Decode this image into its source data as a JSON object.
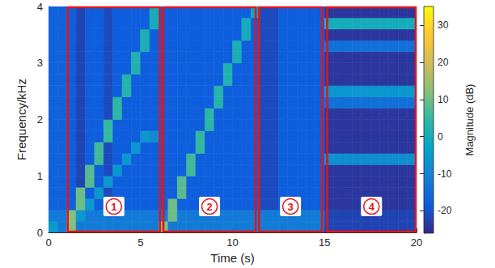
{
  "chart_data": {
    "type": "heatmap",
    "xlabel": "Time (s)",
    "ylabel": "Frequency/kHz",
    "xlim": [
      0,
      20
    ],
    "xticks": [
      0,
      5,
      10,
      15,
      20
    ],
    "ylim": [
      0,
      4
    ],
    "yticks": [
      0,
      1,
      2,
      3,
      4
    ],
    "x_edges": [
      0,
      0.5,
      1,
      1.5,
      2,
      2.5,
      3,
      3.5,
      4,
      4.5,
      5,
      5.5,
      6,
      6.5,
      7,
      7.5,
      8,
      8.5,
      9,
      9.5,
      10,
      10.5,
      11,
      11.5,
      12,
      12.5,
      13,
      13.5,
      14,
      14.5,
      15,
      15.5,
      16,
      16.5,
      17,
      17.5,
      18,
      18.5,
      19,
      19.5,
      20
    ],
    "y_edges": [
      0,
      0.2,
      0.4,
      0.6,
      0.8,
      1,
      1.2,
      1.4,
      1.6,
      1.8,
      2,
      2.2,
      2.4,
      2.6,
      2.8,
      3,
      3.2,
      3.4,
      3.6,
      3.8,
      4
    ],
    "z": [
      [
        -5,
        -12,
        12,
        -12,
        -12,
        -12,
        -12,
        -12,
        -12,
        -12,
        -12,
        -12,
        12,
        -12,
        -12,
        -12,
        -12,
        -12,
        -12,
        -12,
        -12,
        -12,
        -12,
        -12,
        -12,
        -12,
        -12,
        -12,
        -12,
        -12,
        -22,
        -22,
        -22,
        -22,
        -22,
        -22,
        -22,
        -22,
        -22,
        -22
      ],
      [
        -12,
        -12,
        12,
        -6,
        -12,
        -12,
        -12,
        -12,
        -12,
        -12,
        -12,
        -12,
        -12,
        10,
        -12,
        -12,
        -12,
        -12,
        -12,
        -12,
        -12,
        -12,
        -12,
        -12,
        -12,
        -12,
        -12,
        -12,
        -12,
        -12,
        -22,
        -22,
        -22,
        -22,
        -22,
        -22,
        -22,
        -22,
        -22,
        -22
      ],
      [
        -17,
        -17,
        -18,
        10,
        -6,
        -18,
        -21,
        -18,
        -18,
        -18,
        -18,
        -18,
        -18,
        10,
        -18,
        -18,
        -18,
        -18,
        -18,
        -18,
        -18,
        -18,
        -18,
        -21,
        -21,
        -18,
        -18,
        -18,
        -18,
        -18,
        -24,
        -24,
        -24,
        -24,
        -24,
        -24,
        -24,
        -24,
        -24,
        -24
      ],
      [
        -17,
        -17,
        -18,
        10,
        -18,
        -6,
        -21,
        -18,
        -18,
        -18,
        -18,
        -18,
        -18,
        -18,
        8,
        -18,
        -18,
        -18,
        -18,
        -18,
        -18,
        -18,
        -18,
        -21,
        -21,
        -18,
        -18,
        -18,
        -18,
        -18,
        -24,
        -24,
        -24,
        -24,
        -24,
        -24,
        -24,
        -24,
        -24,
        -24
      ],
      [
        -17,
        -17,
        -18,
        -22,
        8,
        -18,
        -6,
        -18,
        -18,
        -18,
        -18,
        -18,
        -18,
        -18,
        8,
        -18,
        -18,
        -18,
        -18,
        -18,
        -18,
        -18,
        -18,
        -21,
        -21,
        -18,
        -18,
        -18,
        -18,
        -18,
        -24,
        -24,
        -24,
        -24,
        -24,
        -24,
        -24,
        -24,
        -24,
        -24
      ],
      [
        -17,
        -17,
        -18,
        -22,
        8,
        -18,
        -21,
        -6,
        -18,
        -18,
        -18,
        -18,
        -18,
        -18,
        -18,
        6,
        -18,
        -18,
        -18,
        -18,
        -18,
        -18,
        -18,
        -21,
        -21,
        -18,
        -18,
        -18,
        -18,
        -18,
        -24,
        -24,
        -24,
        -24,
        -24,
        -24,
        -24,
        -24,
        -24,
        -24
      ],
      [
        -17,
        -17,
        -18,
        -22,
        -18,
        6,
        -21,
        -18,
        -6,
        -18,
        -18,
        -18,
        -18,
        -18,
        -18,
        6,
        -18,
        -18,
        -18,
        -18,
        -18,
        -18,
        -18,
        -21,
        -21,
        -18,
        -18,
        -18,
        -18,
        -18,
        -8,
        -8,
        -8,
        -8,
        -8,
        -8,
        -8,
        -8,
        -8,
        -8
      ],
      [
        -17,
        -17,
        -18,
        -22,
        -18,
        6,
        -21,
        -18,
        -18,
        -6,
        -18,
        -18,
        -18,
        -18,
        -18,
        -18,
        5,
        -18,
        -18,
        -18,
        -18,
        -18,
        -18,
        -21,
        -21,
        -18,
        -18,
        -18,
        -18,
        -18,
        -24,
        -24,
        -24,
        -24,
        -24,
        -24,
        -24,
        -24,
        -24,
        -24
      ],
      [
        -17,
        -17,
        -18,
        -22,
        -18,
        -18,
        5,
        -18,
        -18,
        -18,
        -6,
        -9,
        -18,
        -18,
        -18,
        -18,
        5,
        -18,
        -18,
        -18,
        -18,
        -18,
        -18,
        -21,
        -21,
        -18,
        -18,
        -18,
        -18,
        -18,
        -24,
        -24,
        -24,
        -24,
        -24,
        -24,
        -24,
        -24,
        -24,
        -24
      ],
      [
        -17,
        -17,
        -18,
        -22,
        -18,
        -18,
        5,
        -18,
        -18,
        -18,
        -18,
        -18,
        -18,
        -18,
        -18,
        -18,
        -18,
        4,
        -18,
        -18,
        -18,
        -18,
        -18,
        -21,
        -21,
        -18,
        -18,
        -18,
        -18,
        -18,
        -24,
        -24,
        -24,
        -24,
        -24,
        -24,
        -24,
        -24,
        -24,
        -24
      ],
      [
        -17,
        -17,
        -18,
        -22,
        -18,
        -18,
        -21,
        4,
        -18,
        -18,
        -18,
        -18,
        -18,
        -18,
        -18,
        -18,
        -18,
        4,
        -18,
        -18,
        -18,
        -18,
        -18,
        -21,
        -21,
        -18,
        -18,
        -18,
        -18,
        -18,
        -24,
        -24,
        -24,
        -24,
        -24,
        -24,
        -24,
        -24,
        -24,
        -24
      ],
      [
        -17,
        -17,
        -18,
        -22,
        -18,
        -18,
        -21,
        4,
        -18,
        -18,
        -18,
        -18,
        -18,
        -18,
        -18,
        -18,
        -18,
        -18,
        3,
        -18,
        -18,
        -18,
        -18,
        -21,
        -21,
        -18,
        -18,
        -18,
        -18,
        -18,
        -14,
        -14,
        -14,
        -14,
        -14,
        -14,
        -14,
        -14,
        -14,
        -14
      ],
      [
        -17,
        -17,
        -18,
        -22,
        -18,
        -18,
        -21,
        -18,
        3,
        -18,
        -18,
        -18,
        -18,
        -18,
        -18,
        -18,
        -18,
        -18,
        3,
        -18,
        -18,
        -18,
        -18,
        -21,
        -21,
        -18,
        -18,
        -18,
        -18,
        -18,
        -6,
        -6,
        -6,
        -6,
        -6,
        -6,
        -6,
        -6,
        -6,
        -6
      ],
      [
        -17,
        -17,
        -18,
        -22,
        -18,
        -18,
        -21,
        -18,
        3,
        -18,
        -18,
        -18,
        -18,
        -18,
        -18,
        -18,
        -18,
        -18,
        -18,
        2,
        -18,
        -18,
        -18,
        -21,
        -21,
        -18,
        -18,
        -18,
        -18,
        -18,
        -24,
        -24,
        -24,
        -24,
        -24,
        -24,
        -24,
        -24,
        -24,
        -24
      ],
      [
        -17,
        -17,
        -18,
        -22,
        -18,
        -18,
        -21,
        -18,
        -18,
        2,
        -18,
        -18,
        -18,
        -18,
        -18,
        -18,
        -18,
        -18,
        -18,
        2,
        -18,
        -18,
        -18,
        -21,
        -21,
        -18,
        -18,
        -18,
        -18,
        -18,
        -24,
        -24,
        -24,
        -24,
        -24,
        -24,
        -24,
        -24,
        -24,
        -24
      ],
      [
        -17,
        -17,
        -18,
        -22,
        -18,
        -18,
        -21,
        -18,
        -18,
        2,
        -18,
        -18,
        -18,
        -18,
        -18,
        -18,
        -18,
        -18,
        -18,
        -18,
        1,
        -18,
        -18,
        -21,
        -21,
        -18,
        -18,
        -18,
        -18,
        -18,
        -24,
        -24,
        -24,
        -24,
        -24,
        -24,
        -24,
        -24,
        -24,
        -24
      ],
      [
        -17,
        -17,
        -18,
        -22,
        -18,
        -18,
        -21,
        -18,
        -18,
        -18,
        1,
        -18,
        -18,
        -18,
        -18,
        -18,
        -18,
        -18,
        -18,
        -18,
        1,
        -18,
        -18,
        -21,
        -21,
        -18,
        -18,
        -18,
        -18,
        -18,
        -14,
        -14,
        -14,
        -14,
        -14,
        -14,
        -14,
        -14,
        -14,
        -14
      ],
      [
        -17,
        -17,
        -18,
        -22,
        -18,
        -18,
        -21,
        -18,
        -18,
        -18,
        1,
        -18,
        -18,
        -18,
        -18,
        -18,
        -18,
        -18,
        -18,
        -18,
        -18,
        0,
        -18,
        -21,
        -21,
        -18,
        -18,
        -18,
        -18,
        -18,
        -24,
        -24,
        -24,
        -24,
        -24,
        -24,
        -24,
        -24,
        -24,
        -24
      ],
      [
        -17,
        -17,
        -18,
        -22,
        -18,
        -18,
        -21,
        -18,
        -18,
        -18,
        -18,
        0,
        -18,
        -18,
        -18,
        -18,
        -18,
        -18,
        -18,
        -18,
        -18,
        0,
        -18,
        -21,
        -21,
        -18,
        -18,
        -18,
        -18,
        -18,
        0,
        0,
        0,
        0,
        0,
        0,
        0,
        0,
        0,
        0
      ],
      [
        -17,
        -17,
        -18,
        -22,
        -18,
        -18,
        -21,
        -18,
        -18,
        -18,
        -18,
        0,
        -18,
        -18,
        -18,
        -18,
        -18,
        -18,
        -18,
        -18,
        -18,
        -18,
        -2,
        -21,
        -21,
        -18,
        -18,
        -18,
        -18,
        -18,
        -24,
        -24,
        -24,
        -24,
        -24,
        -24,
        -24,
        -24,
        -24,
        -24
      ]
    ],
    "colorbar": {
      "label": "Magnitude (dB)",
      "range": [
        -26,
        35
      ],
      "ticks": [
        -20,
        -10,
        0,
        10,
        20,
        30
      ]
    },
    "regions": [
      {
        "label": "1",
        "x": [
          1.0,
          6.1
        ]
      },
      {
        "label": "2",
        "x": [
          6.2,
          11.3
        ]
      },
      {
        "label": "3",
        "x": [
          11.4,
          14.9
        ]
      },
      {
        "label": "4",
        "x": [
          15.1,
          20
        ]
      }
    ]
  }
}
